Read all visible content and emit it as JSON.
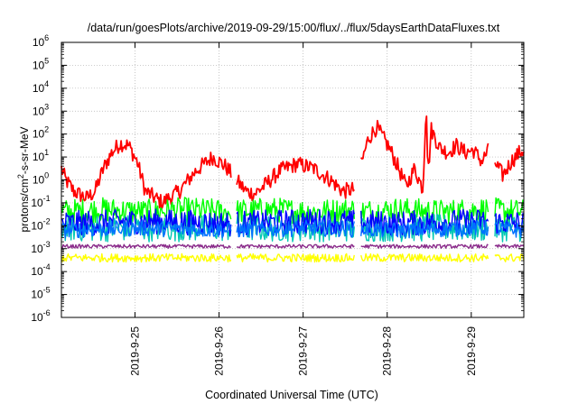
{
  "chart_data": {
    "type": "line",
    "title": "/data/run/goesPlots/archive/2019-09-29/15:00/flux/../flux/5daysEarthDataFluxes.txt",
    "xlabel": "Coordinated Universal Time (UTC)",
    "ylabel_parts": {
      "base": "protons/cm",
      "sup": "2",
      "rest": "-s-sr-MeV"
    },
    "x_axis": {
      "unit": "days",
      "start": "2019-09-24 03:00",
      "end": "2019-09-29 15:00",
      "xlim": [
        0,
        5.5
      ],
      "ticks": [
        {
          "x": 0.875,
          "label": "2019-9-25"
        },
        {
          "x": 1.875,
          "label": "2019-9-26"
        },
        {
          "x": 2.875,
          "label": "2019-9-27"
        },
        {
          "x": 3.875,
          "label": "2019-9-28"
        },
        {
          "x": 4.875,
          "label": "2019-9-29"
        }
      ]
    },
    "y_axis": {
      "scale": "log",
      "ylim": [
        -6,
        6
      ],
      "ticks": [
        {
          "exp": 6,
          "label": "10",
          "sup": "6"
        },
        {
          "exp": 5,
          "label": "10",
          "sup": "5"
        },
        {
          "exp": 4,
          "label": "10",
          "sup": "4"
        },
        {
          "exp": 3,
          "label": "10",
          "sup": "3"
        },
        {
          "exp": 2,
          "label": "10",
          "sup": "2"
        },
        {
          "exp": 1,
          "label": "10",
          "sup": "1"
        },
        {
          "exp": 0,
          "label": "10",
          "sup": "0"
        },
        {
          "exp": -1,
          "label": "10",
          "sup": "-1"
        },
        {
          "exp": -2,
          "label": "10",
          "sup": "-2"
        },
        {
          "exp": -3,
          "label": "10",
          "sup": "-3"
        },
        {
          "exp": -4,
          "label": "10",
          "sup": "-4"
        },
        {
          "exp": -5,
          "label": "10",
          "sup": "-5"
        },
        {
          "exp": -6,
          "label": "10",
          "sup": "-6"
        }
      ]
    },
    "grid": true,
    "gaps": [
      [
        2.02,
        2.08
      ],
      [
        3.49,
        3.56
      ],
      [
        5.08,
        5.15
      ]
    ],
    "series": [
      {
        "color": "#ff0000",
        "points": [
          [
            0,
            0.5
          ],
          [
            0.05,
            0
          ],
          [
            0.15,
            -0.5
          ],
          [
            0.3,
            -0.8
          ],
          [
            0.4,
            -0.5
          ],
          [
            0.5,
            0.5
          ],
          [
            0.6,
            1.2
          ],
          [
            0.7,
            1.6
          ],
          [
            0.8,
            1.5
          ],
          [
            0.9,
            0.8
          ],
          [
            1.0,
            -0.5
          ],
          [
            1.2,
            -1
          ],
          [
            1.4,
            -0.5
          ],
          [
            1.6,
            0.4
          ],
          [
            1.8,
            1
          ],
          [
            1.95,
            0.6
          ],
          [
            2.1,
            -0.1
          ],
          [
            2.2,
            -0.5
          ],
          [
            2.3,
            -0.6
          ],
          [
            2.4,
            -0.3
          ],
          [
            2.6,
            0.4
          ],
          [
            2.8,
            0.7
          ],
          [
            3.0,
            0.5
          ],
          [
            3.2,
            0
          ],
          [
            3.35,
            -0.5
          ],
          [
            3.49,
            -0.4
          ],
          [
            3.56,
            0.6
          ],
          [
            3.65,
            1.8
          ],
          [
            3.75,
            2.3
          ],
          [
            3.9,
            1.4
          ],
          [
            4.0,
            0.6
          ],
          [
            4.1,
            -0.3
          ],
          [
            4.2,
            0.5
          ],
          [
            4.3,
            -0.4
          ],
          [
            4.34,
            3.5
          ],
          [
            4.36,
            0.2
          ],
          [
            4.4,
            2.2
          ],
          [
            4.5,
            1.4
          ],
          [
            4.6,
            1.2
          ],
          [
            4.7,
            1.5
          ],
          [
            4.8,
            1.2
          ],
          [
            4.9,
            1.3
          ],
          [
            5.0,
            0.8
          ],
          [
            5.08,
            1.3
          ],
          [
            5.15,
            0.8
          ],
          [
            5.25,
            0.2
          ],
          [
            5.35,
            0.8
          ],
          [
            5.45,
            1.2
          ],
          [
            5.5,
            1.3
          ]
        ],
        "noise": 0.35
      },
      {
        "color": "#00ff00",
        "points": [
          [
            0,
            -1.4
          ],
          [
            0.5,
            -1.3
          ],
          [
            1.0,
            -1.4
          ],
          [
            1.5,
            -1.3
          ],
          [
            2.0,
            -1.4
          ],
          [
            2.5,
            -1.3
          ],
          [
            3.0,
            -1.4
          ],
          [
            3.49,
            -1.3
          ],
          [
            3.56,
            -1.4
          ],
          [
            4.0,
            -1.3
          ],
          [
            4.5,
            -1.4
          ],
          [
            5.0,
            -1.3
          ],
          [
            5.5,
            -1.4
          ]
        ],
        "noise": 0.55
      },
      {
        "color": "#00c8b4",
        "points": [
          [
            0,
            -2.1
          ],
          [
            1.0,
            -2.1
          ],
          [
            2.0,
            -2.1
          ],
          [
            3.0,
            -2.1
          ],
          [
            4.0,
            -2.1
          ],
          [
            5.0,
            -2.1
          ],
          [
            5.5,
            -2.1
          ]
        ],
        "noise": 0.6
      },
      {
        "color": "#0000ff",
        "points": [
          [
            0,
            -1.9
          ],
          [
            1.0,
            -1.8
          ],
          [
            2.0,
            -1.9
          ],
          [
            3.0,
            -1.8
          ],
          [
            4.0,
            -1.9
          ],
          [
            5.0,
            -1.8
          ],
          [
            5.5,
            -1.9
          ]
        ],
        "noise": 0.55
      },
      {
        "color": "#0070ff",
        "points": [
          [
            0,
            -2.2
          ],
          [
            1.0,
            -2.1
          ],
          [
            2.0,
            -2.2
          ],
          [
            3.0,
            -2.1
          ],
          [
            4.0,
            -2.2
          ],
          [
            5.0,
            -2.1
          ],
          [
            5.5,
            -2.2
          ]
        ],
        "noise": 0.35
      },
      {
        "color": "#8a2b8a",
        "points": [
          [
            0,
            -2.9
          ],
          [
            1.0,
            -2.9
          ],
          [
            2.0,
            -2.9
          ],
          [
            3.0,
            -2.9
          ],
          [
            4.0,
            -2.9
          ],
          [
            5.0,
            -2.9
          ],
          [
            5.5,
            -2.9
          ]
        ],
        "noise": 0.08
      },
      {
        "color": "#ffff00",
        "points": [
          [
            0,
            -3.4
          ],
          [
            1.0,
            -3.4
          ],
          [
            2.0,
            -3.4
          ],
          [
            3.0,
            -3.4
          ],
          [
            4.0,
            -3.4
          ],
          [
            5.0,
            -3.4
          ],
          [
            5.5,
            -3.4
          ]
        ],
        "noise": 0.18
      }
    ]
  }
}
